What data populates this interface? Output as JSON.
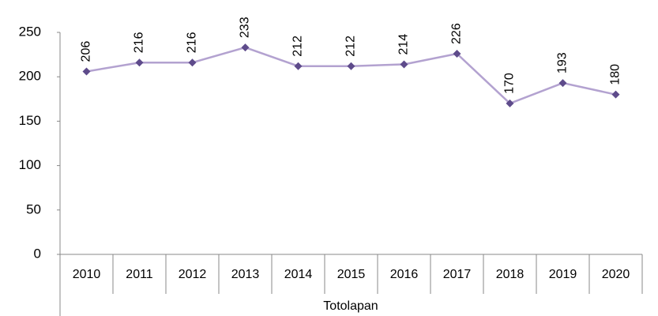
{
  "chart_data": {
    "type": "line",
    "categories": [
      "2010",
      "2011",
      "2012",
      "2013",
      "2014",
      "2015",
      "2016",
      "2017",
      "2018",
      "2019",
      "2020"
    ],
    "xlabel": "Totolapan",
    "series": [
      {
        "name": "Totolapan",
        "color": "#b3a2d0",
        "marker_color": "#5e4b8b",
        "values": [
          206,
          216,
          216,
          233,
          212,
          212,
          214,
          226,
          170,
          193,
          180
        ]
      }
    ],
    "ylim": [
      0,
      250
    ],
    "yticks": [
      0,
      50,
      100,
      150,
      200,
      250
    ],
    "grid": false,
    "legend": false
  }
}
